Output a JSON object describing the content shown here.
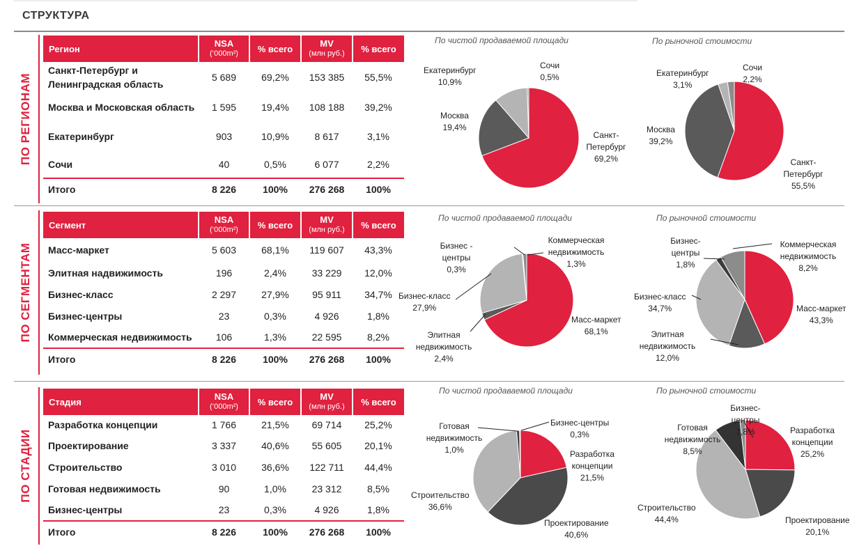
{
  "page": {
    "title": "СТРУКТУРА"
  },
  "sections": [
    {
      "side_label": "ПО РЕГИОНАМ",
      "table": {
        "headers": {
          "name": "Регион",
          "nsa": "NSA",
          "nsa_unit": "(‘000m²)",
          "pct1": "% всего",
          "mv": "MV",
          "mv_unit": "(млн руб.)",
          "pct2": "% всего"
        },
        "rows": [
          {
            "name": "Санкт-Петербург и Ленинградская область",
            "nsa": "5 689",
            "pct1": "69,2%",
            "mv": "153 385",
            "pct2": "55,5%"
          },
          {
            "name": "Москва и Московская область",
            "nsa": "1 595",
            "pct1": "19,4%",
            "mv": "108 188",
            "pct2": "39,2%"
          },
          {
            "name": "Екатеринбург",
            "nsa": "903",
            "pct1": "10,9%",
            "mv": "8 617",
            "pct2": "3,1%"
          },
          {
            "name": "Сочи",
            "nsa": "40",
            "pct1": "0,5%",
            "mv": "6 077",
            "pct2": "2,2%"
          }
        ],
        "total": {
          "name": "Итого",
          "nsa": "8 226",
          "pct1": "100%",
          "mv": "276 268",
          "pct2": "100%"
        }
      }
    },
    {
      "side_label": "ПО СЕГМЕНТАМ",
      "table": {
        "headers": {
          "name": "Сегмент",
          "nsa": "NSA",
          "nsa_unit": "(‘000m²)",
          "pct1": "% всего",
          "mv": "MV",
          "mv_unit": "(млн руб.)",
          "pct2": "% всего"
        },
        "rows": [
          {
            "name": "Масс-маркет",
            "nsa": "5 603",
            "pct1": "68,1%",
            "mv": "119 607",
            "pct2": "43,3%"
          },
          {
            "name": "Элитная надвижимость",
            "nsa": "196",
            "pct1": "2,4%",
            "mv": "33 229",
            "pct2": "12,0%"
          },
          {
            "name": "Бизнес-класс",
            "nsa": "2 297",
            "pct1": "27,9%",
            "mv": "95 911",
            "pct2": "34,7%"
          },
          {
            "name": "Бизнес-центры",
            "nsa": "23",
            "pct1": "0,3%",
            "mv": "4 926",
            "pct2": "1,8%"
          },
          {
            "name": "Коммерческая недвижимость",
            "nsa": "106",
            "pct1": "1,3%",
            "mv": "22 595",
            "pct2": "8,2%"
          }
        ],
        "total": {
          "name": "Итого",
          "nsa": "8 226",
          "pct1": "100%",
          "mv": "276 268",
          "pct2": "100%"
        }
      }
    },
    {
      "side_label": "ПО СТАДИИ",
      "table": {
        "headers": {
          "name": "Стадия",
          "nsa": "NSA",
          "nsa_unit": "(‘000m²)",
          "pct1": "% всего",
          "mv": "MV",
          "mv_unit": "(млн руб.)",
          "pct2": "% всего"
        },
        "rows": [
          {
            "name": "Разработка концепции",
            "nsa": "1 766",
            "pct1": "21,5%",
            "mv": "69 714",
            "pct2": "25,2%"
          },
          {
            "name": "Проектирование",
            "nsa": "3 337",
            "pct1": "40,6%",
            "mv": "55 605",
            "pct2": "20,1%"
          },
          {
            "name": "Строительство",
            "nsa": "3 010",
            "pct1": "36,6%",
            "mv": "122 711",
            "pct2": "44,4%"
          },
          {
            "name": "Готовая недвижимость",
            "nsa": "90",
            "pct1": "1,0%",
            "mv": "23 312",
            "pct2": "8,5%"
          },
          {
            "name": "Бизнес-центры",
            "nsa": "23",
            "pct1": "0,3%",
            "mv": "4 926",
            "pct2": "1,8%"
          }
        ],
        "total": {
          "name": "Итого",
          "nsa": "8 226",
          "pct1": "100%",
          "mv": "276 268",
          "pct2": "100%"
        }
      }
    }
  ],
  "colors": {
    "accent": "#e0213f",
    "dark": "#5a5a5a",
    "mid": "#8c8c8c",
    "light": "#b4b4b4",
    "pale": "#d2d2d2"
  },
  "chart_data": [
    {
      "id": "reg-nsa",
      "type": "pie",
      "title": "По чистой продаваемой площади",
      "slices": [
        {
          "label": "Санкт-Петербург",
          "value": 69.2,
          "pct": "69,2%",
          "color": "#e0213f"
        },
        {
          "label": "Москва",
          "value": 19.4,
          "pct": "19,4%",
          "color": "#5a5a5a"
        },
        {
          "label": "Екатеринбург",
          "value": 10.9,
          "pct": "10,9%",
          "color": "#b4b4b4"
        },
        {
          "label": "Сочи",
          "value": 0.5,
          "pct": "0,5%",
          "color": "#8c8c8c"
        }
      ]
    },
    {
      "id": "reg-mv",
      "type": "pie",
      "title": "По рыночной стоимости",
      "slices": [
        {
          "label": "Санкт-Петербург",
          "value": 55.5,
          "pct": "55,5%",
          "color": "#e0213f"
        },
        {
          "label": "Москва",
          "value": 39.2,
          "pct": "39,2%",
          "color": "#5a5a5a"
        },
        {
          "label": "Екатеринбург",
          "value": 3.1,
          "pct": "3,1%",
          "color": "#b4b4b4"
        },
        {
          "label": "Сочи",
          "value": 2.2,
          "pct": "2,2%",
          "color": "#8c8c8c"
        }
      ]
    },
    {
      "id": "seg-nsa",
      "type": "pie",
      "title": "По чистой продаваемой площади",
      "slices": [
        {
          "label": "Масс-маркет",
          "value": 68.1,
          "pct": "68,1%",
          "color": "#e0213f"
        },
        {
          "label": "Элитная недвижимость",
          "value": 2.4,
          "pct": "2,4%",
          "color": "#5a5a5a"
        },
        {
          "label": "Бизнес-класс",
          "value": 27.9,
          "pct": "27,9%",
          "color": "#b4b4b4"
        },
        {
          "label": "Бизнес - центры",
          "value": 0.3,
          "pct": "0,3%",
          "color": "#3c3c3c"
        },
        {
          "label": "Коммерческая недвижимость",
          "value": 1.3,
          "pct": "1,3%",
          "color": "#8c8c8c"
        }
      ]
    },
    {
      "id": "seg-mv",
      "type": "pie",
      "title": "По рыночной стоимости",
      "slices": [
        {
          "label": "Масс-маркет",
          "value": 43.3,
          "pct": "43,3%",
          "color": "#e0213f"
        },
        {
          "label": "Элитная недвижимость",
          "value": 12.0,
          "pct": "12,0%",
          "color": "#5a5a5a"
        },
        {
          "label": "Бизнес-класс",
          "value": 34.7,
          "pct": "34,7%",
          "color": "#b4b4b4"
        },
        {
          "label": "Бизнес- центры",
          "value": 1.8,
          "pct": "1,8%",
          "color": "#3c3c3c"
        },
        {
          "label": "Коммерческая недвижимость",
          "value": 8.2,
          "pct": "8,2%",
          "color": "#8c8c8c"
        }
      ]
    },
    {
      "id": "st-nsa",
      "type": "pie",
      "title": "По чистой продаваемой площади",
      "slices": [
        {
          "label": "Разработка концепции",
          "value": 21.5,
          "pct": "21,5%",
          "color": "#e0213f"
        },
        {
          "label": "Проектирование",
          "value": 40.6,
          "pct": "40,6%",
          "color": "#4a4a4a"
        },
        {
          "label": "Строительство",
          "value": 36.6,
          "pct": "36,6%",
          "color": "#b4b4b4"
        },
        {
          "label": "Готовая недвижимость",
          "value": 1.0,
          "pct": "1,0%",
          "color": "#3c3c3c"
        },
        {
          "label": "Бизнес-центры",
          "value": 0.3,
          "pct": "0,3%",
          "color": "#8c8c8c"
        }
      ]
    },
    {
      "id": "st-mv",
      "type": "pie",
      "title": "По рыночной стоимости",
      "slices": [
        {
          "label": "Разработка концепции",
          "value": 25.2,
          "pct": "25,2%",
          "color": "#e0213f"
        },
        {
          "label": "Проектирование",
          "value": 20.1,
          "pct": "20,1%",
          "color": "#4a4a4a"
        },
        {
          "label": "Строительство",
          "value": 44.4,
          "pct": "44,4%",
          "color": "#b4b4b4"
        },
        {
          "label": "Готовая недвижимость",
          "value": 8.5,
          "pct": "8,5%",
          "color": "#333333"
        },
        {
          "label": "Бизнес- центры",
          "value": 1.8,
          "pct": "1,8%",
          "color": "#8c8c8c"
        }
      ]
    }
  ]
}
